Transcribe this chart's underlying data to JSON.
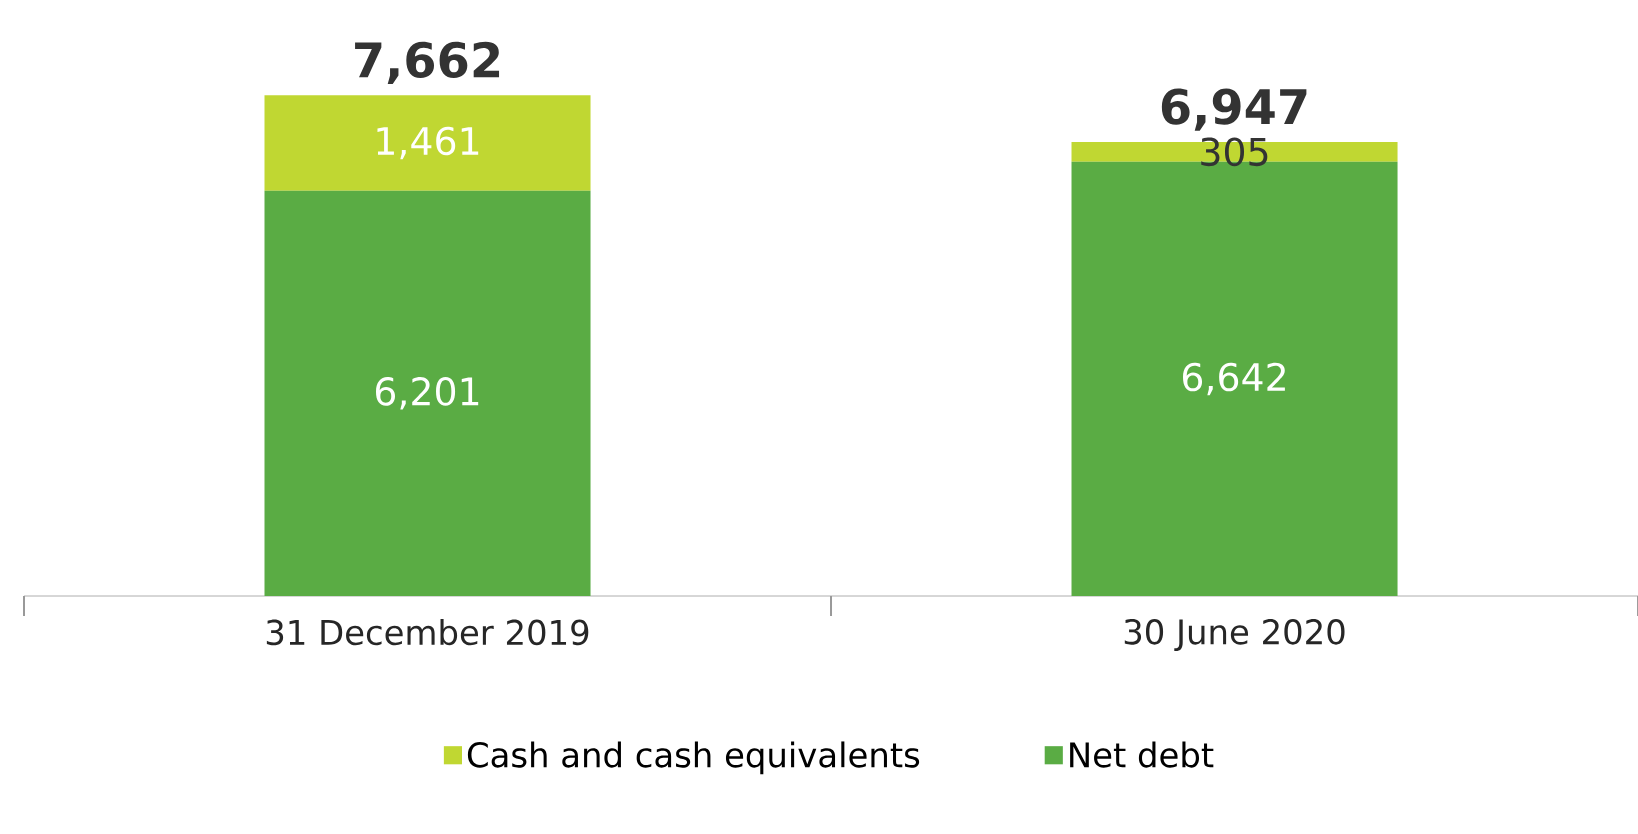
{
  "chart_data": {
    "type": "bar",
    "stacked": true,
    "categories": [
      "31 December 2019",
      "30 June 2020"
    ],
    "series": [
      {
        "name": "Net debt",
        "color": "#5aac44",
        "values": [
          6201,
          6642
        ],
        "value_labels": [
          "6,201",
          "6,642"
        ]
      },
      {
        "name": "Cash and cash equivalents",
        "color": "#c0d732",
        "values": [
          1461,
          305
        ],
        "value_labels": [
          "1,461",
          "305"
        ]
      }
    ],
    "totals": [
      "7,662",
      "6,947"
    ],
    "legend": "bottom"
  }
}
